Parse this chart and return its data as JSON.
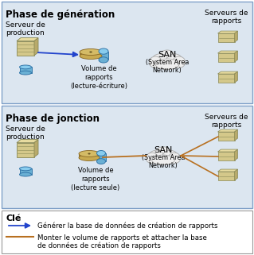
{
  "bg_color": "#dce6f0",
  "white": "#ffffff",
  "border_color": "#7fa0c8",
  "blue_arrow": "#2244cc",
  "orange_line": "#b87020",
  "text_color": "#000000",
  "panel1_title": "Phase de génération",
  "panel2_title": "Phase de jonction",
  "legend_title": "Clé",
  "legend_line1": "Générer la base de données de création de rapports",
  "legend_line2a": "Monter le volume de rapports et attacher la base",
  "legend_line2b": "de données de création de rapports",
  "label_prod": "Serveur de\nproduction",
  "label_vol_gen": "Volume de\nrapports\n(lecture-écriture)",
  "label_vol_jonc": "Volume de\nrapports\n(lecture seule)",
  "label_san_gen": "SAN\n(System Area\nNetwork)",
  "label_san_jonc": "(System Area\nNetwork)",
  "label_servers": "Serveurs de\nrapports"
}
